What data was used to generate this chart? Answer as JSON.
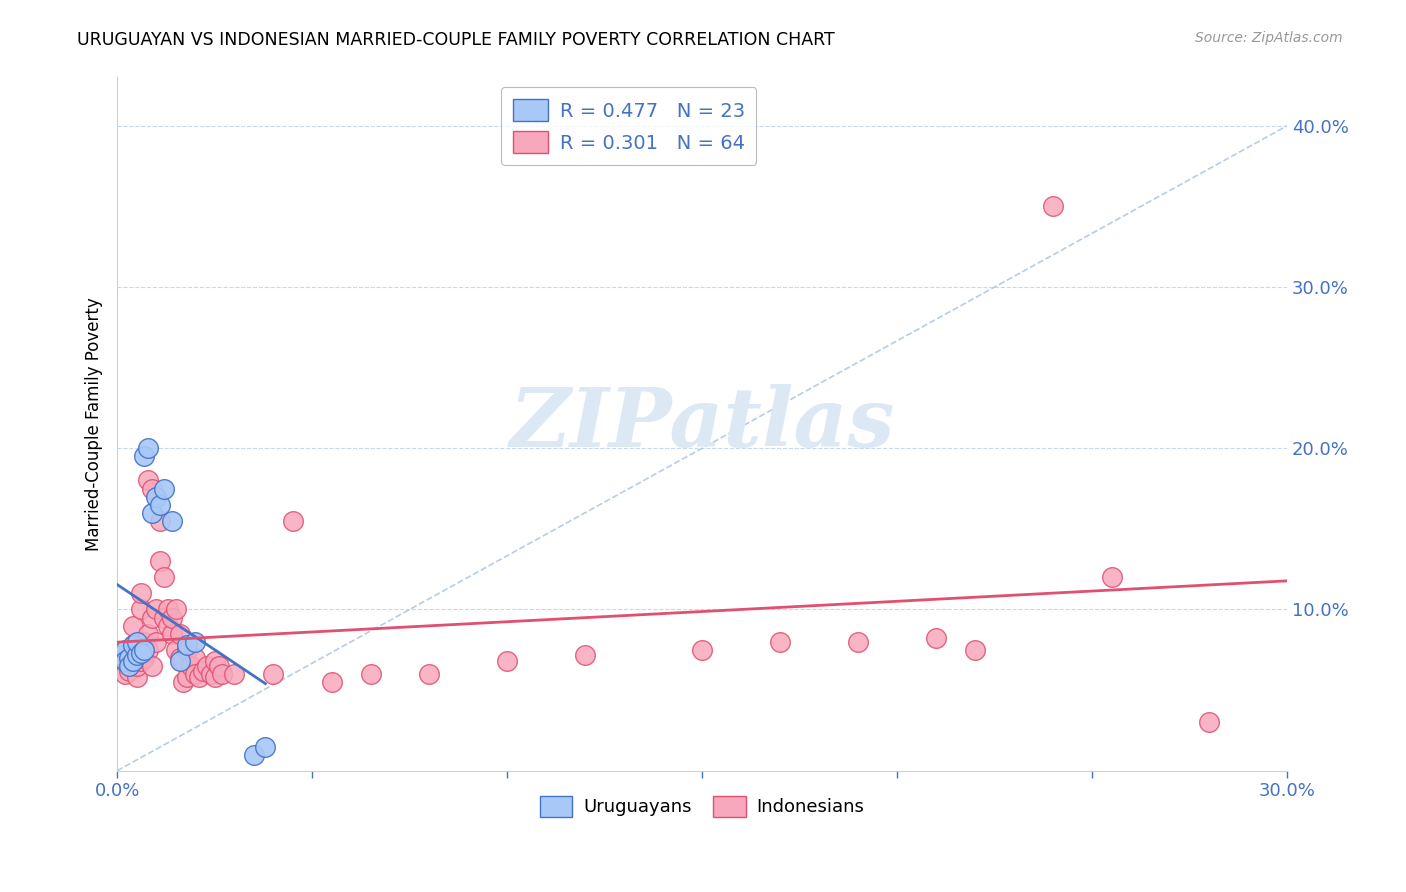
{
  "title": "URUGUAYAN VS INDONESIAN MARRIED-COUPLE FAMILY POVERTY CORRELATION CHART",
  "source": "Source: ZipAtlas.com",
  "ylabel": "Married-Couple Family Poverty",
  "xmin": 0.0,
  "xmax": 0.3,
  "ymin": 0.0,
  "ymax": 0.43,
  "xticks": [
    0.0,
    0.05,
    0.1,
    0.15,
    0.2,
    0.25,
    0.3
  ],
  "xtick_labels": [
    "0.0%",
    "",
    "",
    "",
    "",
    "",
    "30.0%"
  ],
  "yticks": [
    0.0,
    0.1,
    0.2,
    0.3,
    0.4
  ],
  "ytick_labels": [
    "",
    "10.0%",
    "20.0%",
    "30.0%",
    "40.0%"
  ],
  "legend_r_uruguayan": "R = 0.477",
  "legend_n_uruguayan": "N = 23",
  "legend_r_indonesian": "R = 0.301",
  "legend_n_indonesian": "N = 64",
  "uruguayan_color": "#a8c8f8",
  "indonesian_color": "#f8a8bc",
  "trend_uruguayan_color": "#4472C4",
  "trend_indonesian_color": "#E05070",
  "diagonal_color": "#b8cce4",
  "watermark_color": "#dce8f4",
  "tick_color": "#4472C4",
  "grid_color": "#c8d8e8",
  "uruguayan_points": [
    [
      0.001,
      0.072
    ],
    [
      0.002,
      0.075
    ],
    [
      0.002,
      0.068
    ],
    [
      0.003,
      0.07
    ],
    [
      0.003,
      0.065
    ],
    [
      0.004,
      0.068
    ],
    [
      0.004,
      0.078
    ],
    [
      0.005,
      0.072
    ],
    [
      0.005,
      0.08
    ],
    [
      0.006,
      0.073
    ],
    [
      0.007,
      0.075
    ],
    [
      0.007,
      0.195
    ],
    [
      0.008,
      0.2
    ],
    [
      0.009,
      0.16
    ],
    [
      0.01,
      0.17
    ],
    [
      0.011,
      0.165
    ],
    [
      0.012,
      0.175
    ],
    [
      0.014,
      0.155
    ],
    [
      0.016,
      0.068
    ],
    [
      0.018,
      0.078
    ],
    [
      0.02,
      0.08
    ],
    [
      0.035,
      0.01
    ],
    [
      0.038,
      0.015
    ]
  ],
  "indonesian_points": [
    [
      0.002,
      0.06
    ],
    [
      0.003,
      0.062
    ],
    [
      0.003,
      0.068
    ],
    [
      0.004,
      0.078
    ],
    [
      0.004,
      0.09
    ],
    [
      0.005,
      0.058
    ],
    [
      0.005,
      0.065
    ],
    [
      0.005,
      0.072
    ],
    [
      0.006,
      0.068
    ],
    [
      0.006,
      0.1
    ],
    [
      0.006,
      0.11
    ],
    [
      0.007,
      0.07
    ],
    [
      0.007,
      0.08
    ],
    [
      0.008,
      0.075
    ],
    [
      0.008,
      0.085
    ],
    [
      0.008,
      0.18
    ],
    [
      0.009,
      0.065
    ],
    [
      0.009,
      0.095
    ],
    [
      0.009,
      0.175
    ],
    [
      0.01,
      0.08
    ],
    [
      0.01,
      0.1
    ],
    [
      0.011,
      0.13
    ],
    [
      0.011,
      0.155
    ],
    [
      0.012,
      0.095
    ],
    [
      0.012,
      0.12
    ],
    [
      0.013,
      0.1
    ],
    [
      0.013,
      0.09
    ],
    [
      0.014,
      0.085
    ],
    [
      0.014,
      0.095
    ],
    [
      0.015,
      0.1
    ],
    [
      0.015,
      0.075
    ],
    [
      0.016,
      0.085
    ],
    [
      0.016,
      0.07
    ],
    [
      0.017,
      0.068
    ],
    [
      0.017,
      0.055
    ],
    [
      0.018,
      0.075
    ],
    [
      0.018,
      0.058
    ],
    [
      0.019,
      0.065
    ],
    [
      0.02,
      0.07
    ],
    [
      0.02,
      0.06
    ],
    [
      0.021,
      0.058
    ],
    [
      0.022,
      0.062
    ],
    [
      0.023,
      0.065
    ],
    [
      0.024,
      0.06
    ],
    [
      0.025,
      0.068
    ],
    [
      0.025,
      0.058
    ],
    [
      0.026,
      0.065
    ],
    [
      0.027,
      0.06
    ],
    [
      0.03,
      0.06
    ],
    [
      0.04,
      0.06
    ],
    [
      0.045,
      0.155
    ],
    [
      0.055,
      0.055
    ],
    [
      0.065,
      0.06
    ],
    [
      0.08,
      0.06
    ],
    [
      0.1,
      0.068
    ],
    [
      0.12,
      0.072
    ],
    [
      0.15,
      0.075
    ],
    [
      0.17,
      0.08
    ],
    [
      0.19,
      0.08
    ],
    [
      0.21,
      0.082
    ],
    [
      0.22,
      0.075
    ],
    [
      0.24,
      0.35
    ],
    [
      0.255,
      0.12
    ],
    [
      0.28,
      0.03
    ]
  ]
}
